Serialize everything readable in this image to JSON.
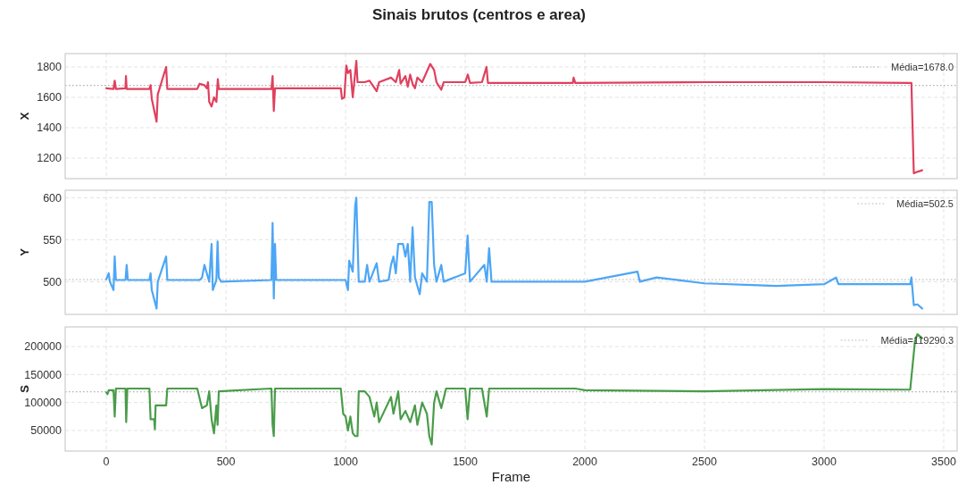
{
  "chart_data": [
    {
      "type": "line",
      "title": "Sinais brutos (centros e area)",
      "ylabel": "X",
      "xlim": [
        -172,
        3556
      ],
      "xticks": [
        0,
        500,
        1000,
        1500,
        2000,
        2500,
        3000,
        3500
      ],
      "ylim": [
        1065,
        1888
      ],
      "yticks": [
        1200,
        1400,
        1600,
        1800
      ],
      "grid": true,
      "tick_labels": "y",
      "legend": "top right",
      "ref_lines": [
        {
          "axis": "y",
          "value": 1678.0,
          "label": "Média=1678.0",
          "color": "#b0b0b0",
          "line_style": "dotted"
        }
      ],
      "series": [
        {
          "color": "#e0405e",
          "x": [
            0,
            30,
            35,
            40,
            80,
            82,
            85,
            180,
            185,
            190,
            210,
            215,
            250,
            255,
            380,
            390,
            410,
            420,
            425,
            430,
            440,
            450,
            460,
            466,
            470,
            690,
            695,
            700,
            705,
            980,
            985,
            995,
            1003,
            1010,
            1020,
            1030,
            1045,
            1050,
            1080,
            1100,
            1130,
            1140,
            1190,
            1210,
            1224,
            1230,
            1250,
            1260,
            1270,
            1280,
            1290,
            1300,
            1320,
            1354,
            1370,
            1380,
            1400,
            1410,
            1500,
            1511,
            1520,
            1570,
            1589,
            1595,
            1950,
            1953,
            1960,
            2500,
            3000,
            3365,
            3375,
            3390,
            3410
          ],
          "values": [
            1660,
            1655,
            1710,
            1655,
            1660,
            1740,
            1655,
            1655,
            1680,
            1590,
            1440,
            1620,
            1800,
            1655,
            1655,
            1690,
            1680,
            1660,
            1700,
            1570,
            1540,
            1600,
            1570,
            1720,
            1655,
            1655,
            1740,
            1510,
            1660,
            1660,
            1590,
            1600,
            1810,
            1760,
            1780,
            1600,
            1840,
            1700,
            1700,
            1710,
            1640,
            1700,
            1730,
            1700,
            1780,
            1690,
            1740,
            1670,
            1750,
            1690,
            1660,
            1730,
            1700,
            1820,
            1780,
            1700,
            1650,
            1700,
            1700,
            1750,
            1695,
            1700,
            1800,
            1695,
            1695,
            1730,
            1695,
            1700,
            1700,
            1695,
            1100,
            1110,
            1120
          ]
        }
      ]
    },
    {
      "type": "line",
      "ylabel": "Y",
      "xlim": [
        -172,
        3556
      ],
      "xticks": [
        0,
        500,
        1000,
        1500,
        2000,
        2500,
        3000,
        3500
      ],
      "ylim": [
        461,
        609
      ],
      "yticks": [
        500,
        550,
        600
      ],
      "grid": true,
      "tick_labels": "y",
      "legend": "top right",
      "ref_lines": [
        {
          "axis": "y",
          "value": 502.5,
          "label": "Média=502.5",
          "color": "#b0b0b0",
          "line_style": "dotted"
        }
      ],
      "series": [
        {
          "color": "#4da6f5",
          "x": [
            0,
            10,
            15,
            30,
            35,
            40,
            80,
            85,
            90,
            180,
            185,
            190,
            210,
            215,
            250,
            255,
            390,
            400,
            410,
            420,
            430,
            440,
            445,
            460,
            465,
            470,
            480,
            690,
            695,
            700,
            705,
            710,
            980,
            1000,
            1010,
            1015,
            1030,
            1040,
            1045,
            1055,
            1080,
            1090,
            1100,
            1130,
            1140,
            1180,
            1190,
            1200,
            1210,
            1220,
            1240,
            1250,
            1260,
            1270,
            1280,
            1290,
            1310,
            1320,
            1340,
            1350,
            1360,
            1370,
            1380,
            1400,
            1410,
            1500,
            1510,
            1520,
            1580,
            1590,
            1600,
            1610,
            1700,
            2000,
            2220,
            2230,
            2300,
            2500,
            2700,
            2800,
            3000,
            3050,
            3060,
            3360,
            3365,
            3375,
            3390,
            3410
          ],
          "values": [
            503,
            510,
            500,
            490,
            530,
            502,
            502,
            520,
            502,
            502,
            510,
            490,
            468,
            500,
            530,
            502,
            502,
            505,
            520,
            510,
            500,
            545,
            490,
            502,
            548,
            505,
            500,
            502,
            570,
            480,
            545,
            502,
            502,
            502,
            490,
            525,
            512,
            590,
            600,
            500,
            500,
            520,
            500,
            522,
            500,
            502,
            520,
            530,
            510,
            545,
            545,
            530,
            545,
            500,
            565,
            505,
            485,
            510,
            500,
            595,
            595,
            520,
            500,
            520,
            500,
            510,
            555,
            500,
            520,
            500,
            540,
            500,
            500,
            500,
            512,
            500,
            505,
            498,
            496,
            495,
            497,
            505,
            497,
            497,
            505,
            472,
            473,
            468
          ]
        }
      ]
    },
    {
      "type": "line",
      "ylabel": "S",
      "xlabel": "Frame",
      "xlim": [
        -172,
        3556
      ],
      "xticks": [
        0,
        500,
        1000,
        1500,
        2000,
        2500,
        3000,
        3500
      ],
      "ylim": [
        13300,
        235100
      ],
      "yticks": [
        50000,
        100000,
        150000,
        200000
      ],
      "grid": true,
      "legend": "top right",
      "ref_lines": [
        {
          "axis": "y",
          "value": 119290.3,
          "label": "Média=119290.3",
          "color": "#b0b0b0",
          "line_style": "dotted"
        }
      ],
      "series": [
        {
          "color": "#4a9c4a",
          "x": [
            0,
            5,
            10,
            30,
            35,
            40,
            80,
            83,
            88,
            180,
            185,
            200,
            203,
            206,
            250,
            255,
            380,
            400,
            420,
            430,
            440,
            450,
            460,
            465,
            470,
            690,
            695,
            700,
            705,
            980,
            990,
            1000,
            1010,
            1020,
            1030,
            1040,
            1050,
            1055,
            1080,
            1100,
            1120,
            1130,
            1140,
            1190,
            1200,
            1220,
            1230,
            1250,
            1270,
            1290,
            1300,
            1320,
            1340,
            1350,
            1360,
            1370,
            1380,
            1400,
            1420,
            1500,
            1510,
            1520,
            1570,
            1590,
            1600,
            1700,
            1960,
            2000,
            2500,
            3000,
            3360,
            3380,
            3390,
            3410
          ],
          "values": [
            118000,
            115000,
            122000,
            122000,
            75000,
            125000,
            125000,
            65000,
            125000,
            125000,
            70000,
            70000,
            52000,
            95000,
            95000,
            125000,
            125000,
            90000,
            95000,
            120000,
            70000,
            45000,
            95000,
            60000,
            120000,
            125000,
            60000,
            40000,
            125000,
            125000,
            80000,
            75000,
            50000,
            75000,
            45000,
            40000,
            40000,
            120000,
            120000,
            110000,
            75000,
            100000,
            65000,
            110000,
            80000,
            120000,
            70000,
            85000,
            65000,
            95000,
            60000,
            100000,
            80000,
            40000,
            25000,
            100000,
            120000,
            90000,
            125000,
            125000,
            70000,
            125000,
            125000,
            75000,
            125000,
            125000,
            125000,
            122000,
            120000,
            124000,
            123000,
            210000,
            222000,
            215000
          ]
        }
      ]
    }
  ]
}
